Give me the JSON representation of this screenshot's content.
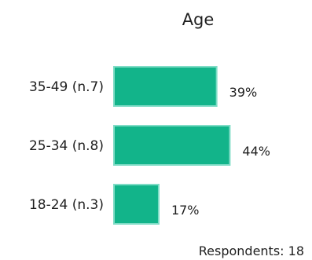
{
  "chart_data": {
    "type": "bar",
    "orientation": "horizontal",
    "title": "Age",
    "categories": [
      "35-49 (n.7)",
      "25-34 (n.8)",
      "18-24 (n.3)"
    ],
    "values": [
      39,
      44,
      17
    ],
    "value_labels": [
      "39%",
      "44%",
      "17%"
    ],
    "unit": "%",
    "bar_color": "#12b48a",
    "bar_border_color": "#7fdcc6",
    "grid": false,
    "footer": "Respondents: 18"
  }
}
